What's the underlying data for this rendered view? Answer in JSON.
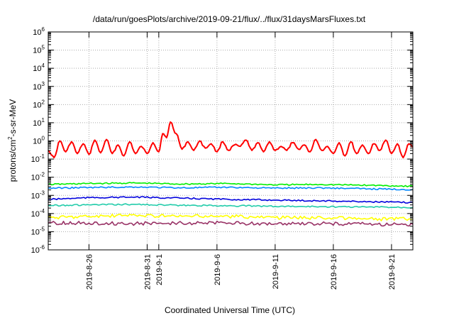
{
  "chart_data": {
    "type": "line",
    "title": "/data/run/goesPlots/archive/2019-09-21/flux/../flux/31daysMarsFluxes.txt",
    "xlabel": "Coordinated Universal Time (UTC)",
    "ylabel": "protons/cm2-s-sr-MeV",
    "ylabel_parts": {
      "pre": "protons/cm",
      "sup": "2",
      "post": "-s-sr-MeV"
    },
    "y_scale": "log",
    "ylim": [
      1e-06,
      1000000.0
    ],
    "y_ticks": [
      {
        "mant": "10",
        "exp": "-6"
      },
      {
        "mant": "10",
        "exp": "-5"
      },
      {
        "mant": "10",
        "exp": "-4"
      },
      {
        "mant": "10",
        "exp": "-3"
      },
      {
        "mant": "10",
        "exp": "-2"
      },
      {
        "mant": "10",
        "exp": "-1"
      },
      {
        "mant": "10",
        "exp": "0"
      },
      {
        "mant": "10",
        "exp": "1"
      },
      {
        "mant": "10",
        "exp": "2"
      },
      {
        "mant": "10",
        "exp": "3"
      },
      {
        "mant": "10",
        "exp": "4"
      },
      {
        "mant": "10",
        "exp": "5"
      },
      {
        "mant": "10",
        "exp": "6"
      }
    ],
    "xlim": [
      "2019-08-22T12:00",
      "2019-09-22T20:00"
    ],
    "x_ticks": [
      "2019-8-26",
      "2019-8-31",
      "2019-9-1",
      "2019-9-6",
      "2019-9-11",
      "2019-9-16",
      "2019-9-21"
    ],
    "x_tick_dates": [
      "2019-08-26",
      "2019-08-31",
      "2019-09-01",
      "2019-09-06",
      "2019-09-11",
      "2019-09-16",
      "2019-09-21"
    ],
    "grid": true,
    "legend": "none",
    "series": [
      {
        "color": "#ff0000",
        "x": [
          "2019-08-22T12:00",
          "2019-08-23T00:00",
          "2019-08-23T12:00",
          "2019-08-24T00:00",
          "2019-08-24T12:00",
          "2019-08-25T00:00",
          "2019-08-25T12:00",
          "2019-08-26T00:00",
          "2019-08-26T12:00",
          "2019-08-27T00:00",
          "2019-08-27T12:00",
          "2019-08-28T00:00",
          "2019-08-28T12:00",
          "2019-08-29T00:00",
          "2019-08-29T12:00",
          "2019-08-30T00:00",
          "2019-08-30T12:00",
          "2019-08-31T00:00",
          "2019-08-31T12:00",
          "2019-09-01T00:00",
          "2019-09-01T08:00",
          "2019-09-01T16:00",
          "2019-09-02T00:00",
          "2019-09-02T12:00",
          "2019-09-03T00:00",
          "2019-09-03T12:00",
          "2019-09-04T00:00",
          "2019-09-04T12:00",
          "2019-09-05T00:00",
          "2019-09-05T12:00",
          "2019-09-06T00:00",
          "2019-09-06T12:00",
          "2019-09-07T00:00",
          "2019-09-07T12:00",
          "2019-09-08T00:00",
          "2019-09-08T12:00",
          "2019-09-09T00:00",
          "2019-09-09T12:00",
          "2019-09-10T00:00",
          "2019-09-10T12:00",
          "2019-09-11T00:00",
          "2019-09-11T12:00",
          "2019-09-12T00:00",
          "2019-09-12T12:00",
          "2019-09-13T00:00",
          "2019-09-13T12:00",
          "2019-09-14T00:00",
          "2019-09-14T12:00",
          "2019-09-15T00:00",
          "2019-09-15T12:00",
          "2019-09-16T00:00",
          "2019-09-16T12:00",
          "2019-09-17T00:00",
          "2019-09-17T12:00",
          "2019-09-18T00:00",
          "2019-09-18T12:00",
          "2019-09-19T00:00",
          "2019-09-19T12:00",
          "2019-09-20T00:00",
          "2019-09-20T12:00",
          "2019-09-21T00:00",
          "2019-09-21T12:00",
          "2019-09-22T00:00",
          "2019-09-22T12:00",
          "2019-09-22T20:00"
        ],
        "values": [
          0.3,
          0.12,
          1.0,
          0.25,
          0.9,
          0.2,
          0.7,
          0.18,
          1.1,
          0.22,
          1.2,
          0.2,
          0.6,
          0.15,
          0.9,
          0.2,
          0.5,
          0.2,
          0.8,
          0.25,
          2.5,
          1.5,
          11,
          2.5,
          0.35,
          0.9,
          0.3,
          1.0,
          0.4,
          0.7,
          0.25,
          0.9,
          0.3,
          0.6,
          0.5,
          1.1,
          0.3,
          0.8,
          0.25,
          0.9,
          0.3,
          0.5,
          0.3,
          0.8,
          0.35,
          0.6,
          0.25,
          1.2,
          0.3,
          0.5,
          0.2,
          0.8,
          0.15,
          0.9,
          0.2,
          0.6,
          0.2,
          0.7,
          0.3,
          1.1,
          0.2,
          0.7,
          0.12,
          0.7,
          0.5
        ]
      },
      {
        "color": "#00ee00",
        "x": [
          "2019-08-22T12:00",
          "2019-08-26T00:00",
          "2019-08-30T00:00",
          "2019-09-03T00:00",
          "2019-09-07T00:00",
          "2019-09-11T00:00",
          "2019-09-15T00:00",
          "2019-09-19T00:00",
          "2019-09-22T20:00"
        ],
        "values": [
          0.004,
          0.0045,
          0.0048,
          0.0042,
          0.0045,
          0.0038,
          0.004,
          0.0036,
          0.0032
        ]
      },
      {
        "color": "#0088ff",
        "x": [
          "2019-08-22T12:00",
          "2019-08-26T00:00",
          "2019-08-30T00:00",
          "2019-09-03T00:00",
          "2019-09-07T00:00",
          "2019-09-11T00:00",
          "2019-09-15T00:00",
          "2019-09-19T00:00",
          "2019-09-22T20:00"
        ],
        "values": [
          0.0025,
          0.0027,
          0.0029,
          0.0026,
          0.0028,
          0.0025,
          0.0026,
          0.0023,
          0.0021
        ]
      },
      {
        "color": "#0000dd",
        "x": [
          "2019-08-22T12:00",
          "2019-08-26T00:00",
          "2019-08-30T00:00",
          "2019-09-03T00:00",
          "2019-09-07T00:00",
          "2019-09-11T00:00",
          "2019-09-15T00:00",
          "2019-09-19T00:00",
          "2019-09-22T20:00"
        ],
        "values": [
          0.0006,
          0.00075,
          0.0008,
          0.0007,
          0.0006,
          0.00055,
          0.0005,
          0.00045,
          0.0004
        ]
      },
      {
        "color": "#22ccaa",
        "x": [
          "2019-08-22T12:00",
          "2019-08-26T00:00",
          "2019-08-30T00:00",
          "2019-09-03T00:00",
          "2019-09-07T00:00",
          "2019-09-11T00:00",
          "2019-09-15T00:00",
          "2019-09-19T00:00",
          "2019-09-22T20:00"
        ],
        "values": [
          0.00028,
          0.0003,
          0.00032,
          0.00028,
          0.00027,
          0.00025,
          0.00024,
          0.00023,
          0.00022
        ]
      },
      {
        "color": "#ffff00",
        "x": [
          "2019-08-22T12:00",
          "2019-08-26T00:00",
          "2019-08-30T00:00",
          "2019-09-03T00:00",
          "2019-09-07T00:00",
          "2019-09-11T00:00",
          "2019-09-15T00:00",
          "2019-09-19T00:00",
          "2019-09-22T20:00"
        ],
        "values": [
          6e-05,
          7e-05,
          8e-05,
          7e-05,
          7e-05,
          6e-05,
          6e-05,
          5e-05,
          5e-05
        ]
      },
      {
        "color": "#993366",
        "x": [
          "2019-08-22T12:00",
          "2019-08-26T00:00",
          "2019-08-30T00:00",
          "2019-09-03T00:00",
          "2019-09-07T00:00",
          "2019-09-11T00:00",
          "2019-09-15T00:00",
          "2019-09-19T00:00",
          "2019-09-22T20:00"
        ],
        "values": [
          3e-05,
          3e-05,
          2.8e-05,
          3e-05,
          3e-05,
          2.7e-05,
          2.8e-05,
          2.6e-05,
          2.5e-05
        ]
      }
    ]
  }
}
